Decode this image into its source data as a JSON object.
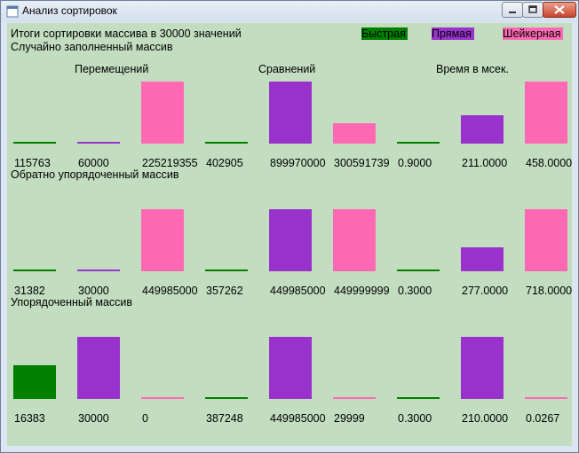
{
  "window": {
    "title": "Анализ сортировок"
  },
  "header": {
    "summary": "Итоги сортировки массива в 30000 значений"
  },
  "legend": [
    {
      "name": "Быстрая",
      "color": "#008000"
    },
    {
      "name": "Прямая",
      "color": "#9932CC"
    },
    {
      "name": "Шейкерная",
      "color": "#FF69B4"
    }
  ],
  "columns": {
    "moves": "Перемещений",
    "comparisons": "Сравнений",
    "time": "Время в мсек."
  },
  "chart_data": {
    "type": "bar",
    "series_names": [
      "Быстрая",
      "Прямая",
      "Шейкерная"
    ],
    "groups": [
      "Перемещений",
      "Сравнений",
      "Время в мсек."
    ],
    "sections": [
      {
        "title": "Случайно заполненный массив",
        "values": [
          {
            "group": "Перемещений",
            "series": "Быстрая",
            "value": 115763,
            "label": "115763"
          },
          {
            "group": "Перемещений",
            "series": "Прямая",
            "value": 60000,
            "label": "60000"
          },
          {
            "group": "Перемещений",
            "series": "Шейкерная",
            "value": 225219355,
            "label": "225219355"
          },
          {
            "group": "Сравнений",
            "series": "Быстрая",
            "value": 402905,
            "label": "402905"
          },
          {
            "group": "Сравнений",
            "series": "Прямая",
            "value": 899970000,
            "label": "899970000"
          },
          {
            "group": "Сравнений",
            "series": "Шейкерная",
            "value": 300591739,
            "label": "300591739"
          },
          {
            "group": "Время в мсек.",
            "series": "Быстрая",
            "value": 0.9,
            "label": "0.9000"
          },
          {
            "group": "Время в мсек.",
            "series": "Прямая",
            "value": 211.0,
            "label": "211.0000"
          },
          {
            "group": "Время в мсек.",
            "series": "Шейкерная",
            "value": 458.0,
            "label": "458.0000"
          }
        ]
      },
      {
        "title": "Обратно упорядоченный массив",
        "values": [
          {
            "group": "Перемещений",
            "series": "Быстрая",
            "value": 31382,
            "label": "31382"
          },
          {
            "group": "Перемещений",
            "series": "Прямая",
            "value": 30000,
            "label": "30000"
          },
          {
            "group": "Перемещений",
            "series": "Шейкерная",
            "value": 449985000,
            "label": "449985000"
          },
          {
            "group": "Сравнений",
            "series": "Быстрая",
            "value": 357262,
            "label": "357262"
          },
          {
            "group": "Сравнений",
            "series": "Прямая",
            "value": 449985000,
            "label": "449985000"
          },
          {
            "group": "Сравнений",
            "series": "Шейкерная",
            "value": 449999999,
            "label": "449999999"
          },
          {
            "group": "Время в мсек.",
            "series": "Быстрая",
            "value": 0.3,
            "label": "0.3000"
          },
          {
            "group": "Время в мсек.",
            "series": "Прямая",
            "value": 277.0,
            "label": "277.0000"
          },
          {
            "group": "Время в мсек.",
            "series": "Шейкерная",
            "value": 718.0,
            "label": "718.0000"
          }
        ]
      },
      {
        "title": "Упорядоченный массив",
        "values": [
          {
            "group": "Перемещений",
            "series": "Быстрая",
            "value": 16383,
            "label": "16383"
          },
          {
            "group": "Перемещений",
            "series": "Прямая",
            "value": 30000,
            "label": "30000"
          },
          {
            "group": "Перемещений",
            "series": "Шейкерная",
            "value": 0,
            "label": "0"
          },
          {
            "group": "Сравнений",
            "series": "Быстрая",
            "value": 387248,
            "label": "387248"
          },
          {
            "group": "Сравнений",
            "series": "Прямая",
            "value": 449985000,
            "label": "449985000"
          },
          {
            "group": "Сравнений",
            "series": "Шейкерная",
            "value": 29999,
            "label": "29999"
          },
          {
            "group": "Время в мсек.",
            "series": "Быстрая",
            "value": 0.3,
            "label": "0.3000"
          },
          {
            "group": "Время в мсек.",
            "series": "Прямая",
            "value": 210.0,
            "label": "210.0000"
          },
          {
            "group": "Время в мсек.",
            "series": "Шейкерная",
            "value": 0.0267,
            "label": "0.0267"
          }
        ]
      }
    ]
  }
}
